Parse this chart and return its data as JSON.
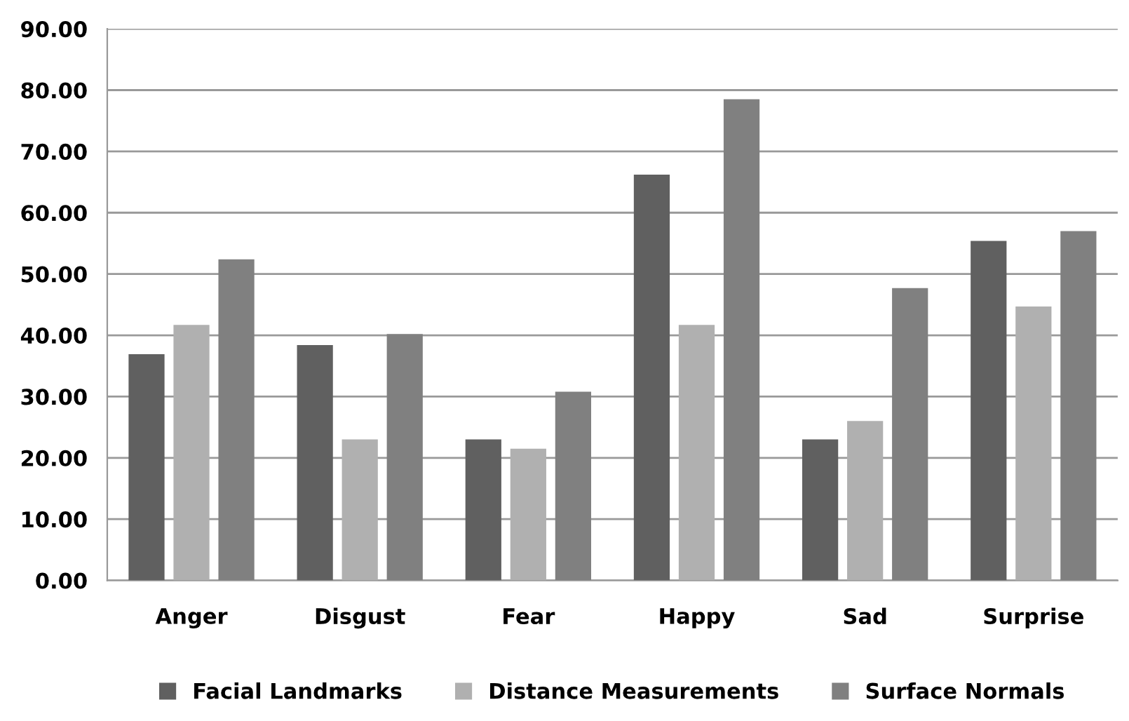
{
  "chart_data": {
    "type": "bar",
    "categories": [
      "Anger",
      "Disgust",
      "Fear",
      "Happy",
      "Sad",
      "Surprise"
    ],
    "series": [
      {
        "name": "Facial Landmarks",
        "color": "#606060",
        "values": [
          36.9,
          38.4,
          23.0,
          66.2,
          23.0,
          55.4
        ]
      },
      {
        "name": "Distance Measurements",
        "color": "#b0b0b0",
        "values": [
          41.7,
          23.0,
          21.5,
          41.7,
          26.0,
          44.7
        ]
      },
      {
        "name": "Surface Normals",
        "color": "#808080",
        "values": [
          52.4,
          40.2,
          30.8,
          78.5,
          47.7,
          57.0
        ]
      }
    ],
    "ylim": [
      0,
      90
    ],
    "yticks": [
      {
        "value": 0,
        "label": "0.00"
      },
      {
        "value": 10,
        "label": "10.00"
      },
      {
        "value": 20,
        "label": "20.00"
      },
      {
        "value": 30,
        "label": "30.00"
      },
      {
        "value": 40,
        "label": "40.00"
      },
      {
        "value": 50,
        "label": "50.00"
      },
      {
        "value": 60,
        "label": "60.00"
      },
      {
        "value": 70,
        "label": "70.00"
      },
      {
        "value": 80,
        "label": "80.00"
      },
      {
        "value": 90,
        "label": "90.00"
      }
    ],
    "grid": "y",
    "legend": "bottom"
  }
}
